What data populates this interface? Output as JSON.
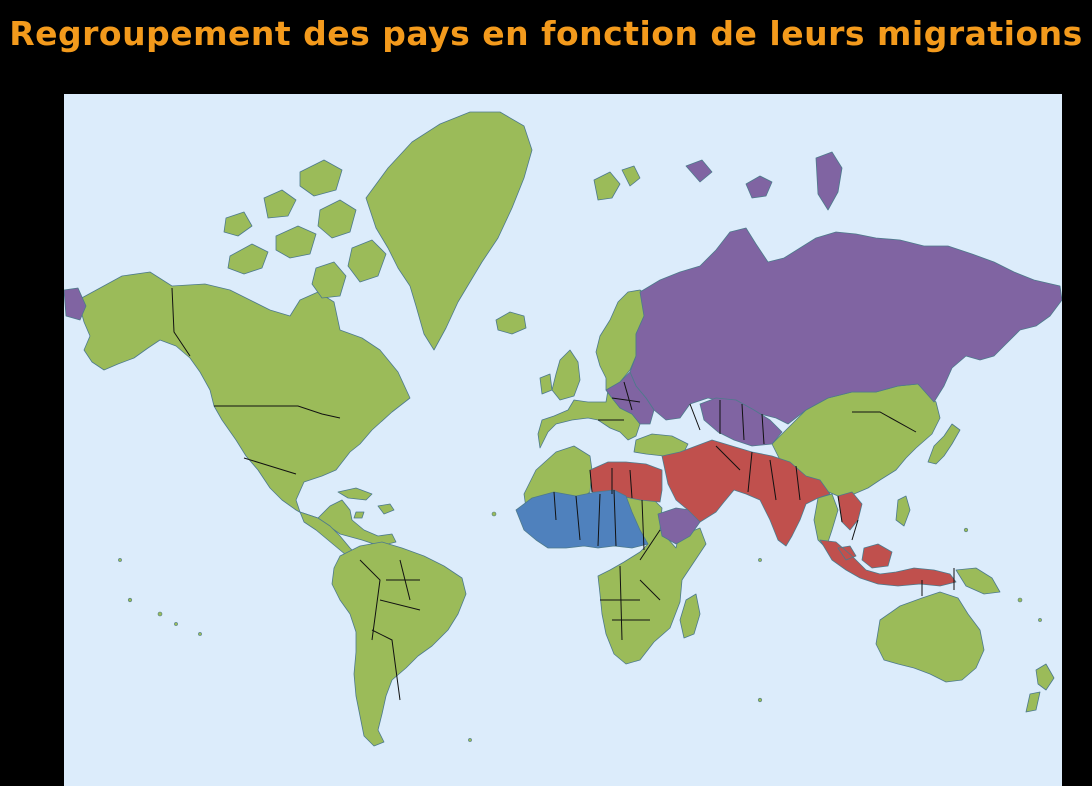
{
  "title": "Regroupement des pays en fonction de leurs migrations",
  "map": {
    "ocean_color": "#dcecfb",
    "groups": [
      {
        "id": "green",
        "color": "#9bbb59"
      },
      {
        "id": "purple",
        "color": "#8064a2"
      },
      {
        "id": "red",
        "color": "#c0504d"
      },
      {
        "id": "blue",
        "color": "#4f81bd"
      }
    ]
  }
}
